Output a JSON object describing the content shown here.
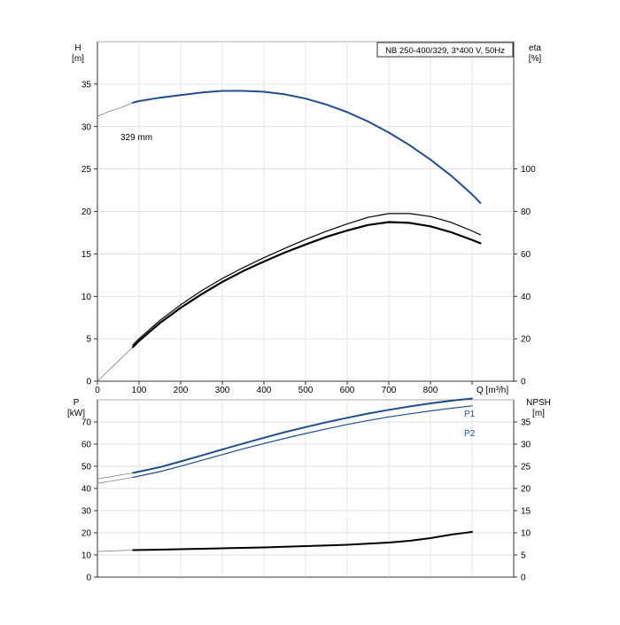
{
  "header": {
    "title": "NB 250-400/329, 3*400 V, 50Hz"
  },
  "chart_data": [
    {
      "type": "line",
      "panel": "head-efficiency",
      "x_unit_label": "Q [m³/h]",
      "x_ticks": [
        0,
        100,
        200,
        300,
        400,
        500,
        600,
        700,
        800
      ],
      "xlim": [
        0,
        1000
      ],
      "left_axis": {
        "label_top": "H",
        "label_unit": "[m]",
        "ticks": [
          0,
          5,
          10,
          15,
          20,
          25,
          30,
          35
        ],
        "ylim": [
          0,
          40
        ]
      },
      "right_axis": {
        "label_top": "eta",
        "label_unit": "[%]",
        "ticks": [
          0,
          20,
          40,
          60,
          80,
          100
        ],
        "ylim": [
          0,
          160
        ]
      },
      "grid": true,
      "colors": {
        "head": "#1f4e8c",
        "efficiency": "#000000",
        "extrapolation": "#808080"
      },
      "annotation": "329 mm",
      "series": [
        {
          "id": "head",
          "axis": "left",
          "x": [
            85,
            100,
            150,
            200,
            250,
            300,
            350,
            400,
            450,
            500,
            550,
            600,
            650,
            700,
            750,
            800,
            850,
            900,
            920
          ],
          "y": [
            32.8,
            33.0,
            33.4,
            33.7,
            34.0,
            34.2,
            34.2,
            34.1,
            33.8,
            33.3,
            32.6,
            31.7,
            30.6,
            29.3,
            27.8,
            26.1,
            24.2,
            22.0,
            21.0
          ]
        },
        {
          "id": "head-extrapolated",
          "axis": "left",
          "x": [
            0,
            30,
            60,
            85
          ],
          "y": [
            31.2,
            31.8,
            32.3,
            32.8
          ]
        },
        {
          "id": "eta-upper",
          "axis": "right",
          "x": [
            85,
            100,
            150,
            200,
            250,
            300,
            350,
            400,
            450,
            500,
            550,
            600,
            650,
            700,
            750,
            800,
            850,
            900,
            920
          ],
          "y": [
            17,
            20,
            28.6,
            36,
            42.6,
            48.4,
            53.5,
            58.2,
            62.6,
            66.8,
            70.7,
            74.1,
            77.2,
            79.0,
            79.0,
            77.6,
            74.8,
            70.8,
            69.0
          ]
        },
        {
          "id": "eta-lower",
          "axis": "right",
          "x": [
            85,
            100,
            150,
            200,
            250,
            300,
            350,
            400,
            450,
            500,
            550,
            600,
            650,
            700,
            750,
            800,
            850,
            900,
            920
          ],
          "y": [
            16,
            19,
            27.4,
            34.6,
            41.0,
            46.8,
            51.9,
            56.4,
            60.6,
            64.4,
            68.0,
            71.0,
            73.6,
            75.0,
            74.6,
            73.0,
            70.2,
            66.6,
            65.0
          ]
        },
        {
          "id": "eta-extrapolated",
          "axis": "right",
          "x": [
            0,
            85
          ],
          "y": [
            0,
            16
          ]
        }
      ]
    },
    {
      "type": "line",
      "panel": "power-npsh",
      "xlim": [
        0,
        1000
      ],
      "left_axis": {
        "label_top": "P",
        "label_unit": "[kW]",
        "ticks": [
          0,
          10,
          20,
          30,
          40,
          50,
          60,
          70
        ],
        "ylim": [
          0,
          80
        ]
      },
      "right_axis": {
        "label_top": "NPSH",
        "label_unit": "[m]",
        "ticks": [
          0,
          5,
          10,
          15,
          20,
          25,
          30,
          35
        ],
        "ylim": [
          0,
          40
        ]
      },
      "grid": true,
      "colors": {
        "p1": "#1f4e8c",
        "p2": "#1f4e8c",
        "npsh": "#000000",
        "extrapolation": "#808080"
      },
      "series": [
        {
          "id": "p1",
          "name": "P1",
          "axis": "left",
          "x": [
            85,
            150,
            200,
            250,
            300,
            350,
            400,
            450,
            500,
            550,
            600,
            650,
            700,
            750,
            800,
            850,
            900
          ],
          "y": [
            47,
            49.6,
            52.2,
            54.9,
            57.6,
            60.3,
            62.9,
            65.4,
            67.7,
            69.9,
            71.9,
            73.8,
            75.5,
            77.0,
            78.4,
            79.6,
            80.6
          ]
        },
        {
          "id": "p1-extrapolated",
          "axis": "left",
          "x": [
            0,
            85
          ],
          "y": [
            44.3,
            47
          ]
        },
        {
          "id": "p2",
          "name": "P2",
          "axis": "left",
          "x": [
            85,
            150,
            200,
            250,
            300,
            350,
            400,
            450,
            500,
            550,
            600,
            650,
            700,
            750,
            800,
            850,
            900
          ],
          "y": [
            45,
            47.6,
            50.1,
            52.7,
            55.3,
            57.9,
            60.3,
            62.6,
            64.8,
            66.9,
            68.9,
            70.7,
            72.3,
            73.7,
            75.0,
            76.2,
            77.3
          ]
        },
        {
          "id": "p2-extrapolated",
          "axis": "left",
          "x": [
            0,
            85
          ],
          "y": [
            42.3,
            45
          ]
        },
        {
          "id": "npsh",
          "axis": "right",
          "x": [
            85,
            150,
            200,
            300,
            400,
            500,
            600,
            700,
            750,
            800,
            850,
            900
          ],
          "y": [
            6.1,
            6.2,
            6.3,
            6.5,
            6.7,
            7.0,
            7.3,
            7.8,
            8.2,
            8.8,
            9.6,
            10.2
          ]
        },
        {
          "id": "npsh-extrapolated",
          "axis": "right",
          "x": [
            0,
            85
          ],
          "y": [
            5.8,
            6.1
          ]
        }
      ]
    }
  ]
}
